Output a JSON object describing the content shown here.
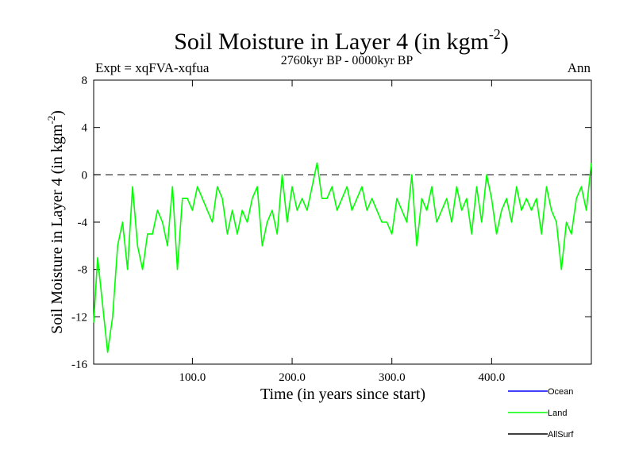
{
  "chart_data": {
    "type": "line",
    "title": "Soil Moisture in Layer 4 (in kgm",
    "title_sup": "-2",
    "title_close": ")",
    "subtitle": "2760kyr BP - 0000kyr BP",
    "expt_label": "Expt = xqFVA-xqfua",
    "season_label": "Ann",
    "xlabel": "Time (in years since start)",
    "ylabel": "Soil Moisture in Layer 4 (in kgm",
    "ylabel_sup": "-2",
    "ylabel_close": ")",
    "xlim": [
      1,
      500
    ],
    "ylim": [
      -16,
      8
    ],
    "xticks": [
      100,
      200,
      300,
      400
    ],
    "xtick_labels": [
      "100.0",
      "200.0",
      "300.0",
      "400.0"
    ],
    "yticks": [
      8,
      4,
      0,
      -4,
      -8,
      -12,
      -16
    ],
    "ytick_labels": [
      "8",
      "4",
      "0",
      "-4",
      "-8",
      "-12",
      "-16"
    ],
    "zero_line": 0,
    "legend": [
      {
        "name": "Ocean",
        "color": "#0000ff"
      },
      {
        "name": "Land",
        "color": "#00ff00"
      },
      {
        "name": "AllSurf",
        "color": "#000000"
      }
    ],
    "series": [
      {
        "name": "Land",
        "color": "#00ff00",
        "x": [
          1,
          5,
          10,
          15,
          20,
          25,
          30,
          35,
          40,
          45,
          50,
          55,
          60,
          65,
          70,
          75,
          80,
          85,
          90,
          95,
          100,
          105,
          110,
          115,
          120,
          125,
          130,
          135,
          140,
          145,
          150,
          155,
          160,
          165,
          170,
          175,
          180,
          185,
          190,
          195,
          200,
          205,
          210,
          215,
          220,
          225,
          230,
          235,
          240,
          245,
          250,
          255,
          260,
          265,
          270,
          275,
          280,
          285,
          290,
          295,
          300,
          305,
          310,
          315,
          320,
          325,
          330,
          335,
          340,
          345,
          350,
          355,
          360,
          365,
          370,
          375,
          380,
          385,
          390,
          395,
          400,
          405,
          410,
          415,
          420,
          425,
          430,
          435,
          440,
          445,
          450,
          455,
          460,
          465,
          470,
          475,
          480,
          485,
          490,
          495,
          500
        ],
        "values": [
          -12.5,
          -7,
          -11,
          -15,
          -12,
          -6,
          -4,
          -8,
          -1,
          -6,
          -8,
          -5,
          -5,
          -3,
          -4,
          -6,
          -1,
          -8,
          -2,
          -2,
          -3,
          -1,
          -2,
          -3,
          -4,
          -1,
          -2,
          -5,
          -3,
          -5,
          -3,
          -4,
          -2,
          -1,
          -6,
          -4,
          -3,
          -5,
          0,
          -4,
          -1,
          -3,
          -2,
          -3,
          -1,
          1,
          -2,
          -2,
          -1,
          -3,
          -2,
          -1,
          -3,
          -2,
          -1,
          -3,
          -2,
          -3,
          -4,
          -4,
          -5,
          -2,
          -3,
          -4,
          0,
          -6,
          -2,
          -3,
          -1,
          -4,
          -3,
          -2,
          -4,
          -1,
          -3,
          -2,
          -5,
          -1,
          -4,
          0,
          -2,
          -5,
          -3,
          -2,
          -4,
          -1,
          -3,
          -2,
          -3,
          -2,
          -5,
          -1,
          -3,
          -4,
          -8,
          -4,
          -5,
          -2,
          -1,
          -3,
          1
        ]
      },
      {
        "name": "Ocean",
        "color": "#0000ff",
        "x": [],
        "values": []
      },
      {
        "name": "AllSurf",
        "color": "#000000",
        "x": [],
        "values": []
      }
    ]
  }
}
